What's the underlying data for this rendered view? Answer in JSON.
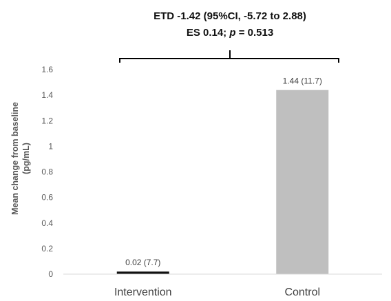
{
  "chart_data": {
    "type": "bar",
    "categories": [
      "Intervention",
      "Control"
    ],
    "values": [
      0.02,
      1.44
    ],
    "data_labels": [
      "0.02 (7.7)",
      "1.44 (11.7)"
    ],
    "colors": [
      "#111111",
      "#bfbfbf"
    ],
    "ylabel_line1": "Mean change from baseline",
    "ylabel_line2": "(pg/mL)",
    "ylim": [
      0,
      1.6
    ],
    "yticks": [
      0,
      0.2,
      0.4,
      0.6,
      0.8,
      1,
      1.2,
      1.4,
      1.6
    ],
    "ytick_labels": [
      "0",
      "0.2",
      "0.4",
      "0.6",
      "0.8",
      "1",
      "1.2",
      "1.4",
      "1.6"
    ],
    "grid": false,
    "annotation": {
      "line1": "ETD -1.42 (95%CI, -5.72 to 2.88)",
      "line2_prefix": "ES 0.14; ",
      "line2_p": "p",
      "line2_suffix": " = 0.513"
    }
  }
}
